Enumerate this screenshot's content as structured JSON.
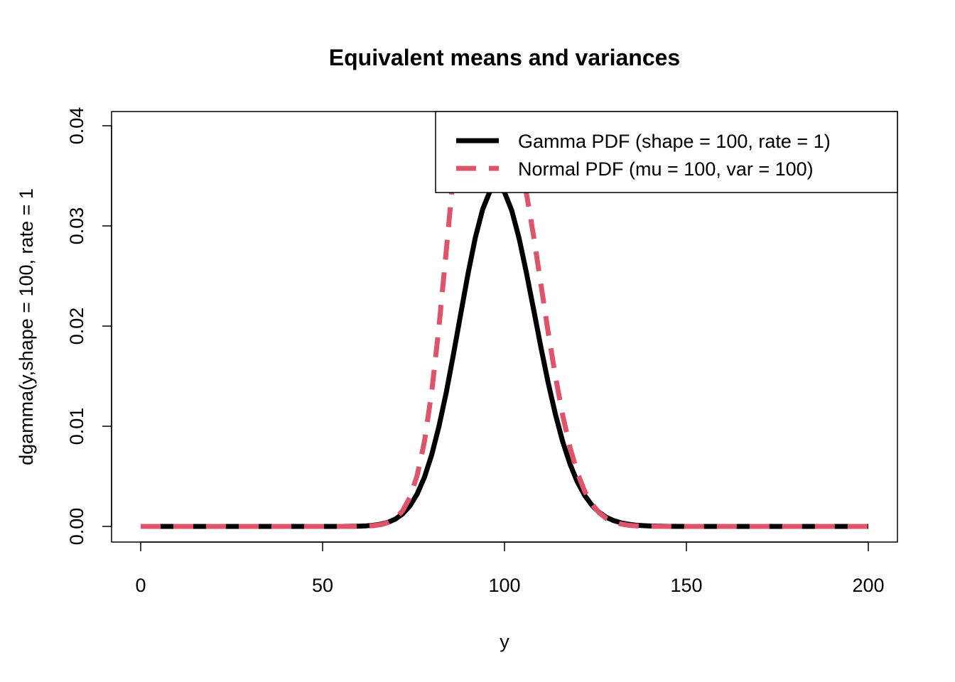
{
  "chart_data": {
    "type": "line",
    "title": "Equivalent means and variances",
    "xlabel": "y",
    "ylabel": "dgamma(y,shape = 100, rate = 1",
    "xlim": [
      0,
      200
    ],
    "ylim": [
      0,
      0.04
    ],
    "x_ticks": [
      0,
      50,
      100,
      150,
      200
    ],
    "x_tick_labels": [
      "0",
      "50",
      "100",
      "150",
      "200"
    ],
    "y_ticks": [
      0,
      0.01,
      0.02,
      0.03,
      0.04
    ],
    "y_tick_labels": [
      "0.00",
      "0.01",
      "0.02",
      "0.03",
      "0.04"
    ],
    "grid": false,
    "legend_position": "top-right",
    "x": [
      0,
      5,
      10,
      15,
      20,
      25,
      30,
      35,
      40,
      45,
      50,
      55,
      60,
      62,
      64,
      66,
      68,
      70,
      72,
      74,
      76,
      78,
      80,
      82,
      84,
      86,
      88,
      90,
      92,
      94,
      96,
      98,
      100,
      102,
      104,
      106,
      108,
      110,
      112,
      114,
      116,
      118,
      120,
      122,
      124,
      126,
      128,
      130,
      132,
      134,
      136,
      138,
      140,
      145,
      150,
      155,
      160,
      165,
      170,
      175,
      180,
      185,
      190,
      195,
      200
    ],
    "series": [
      {
        "name": "Gamma PDF (shape = 100, rate = 1)",
        "color": "#000000",
        "style": "solid",
        "values": [
          0,
          0,
          0,
          0,
          0,
          0,
          0,
          0,
          0,
          0,
          0,
          0,
          3e-05,
          6e-05,
          0.00012,
          0.00023,
          0.00041,
          0.00073,
          0.00125,
          0.00205,
          0.00324,
          0.00492,
          0.00716,
          0.01,
          0.0134,
          0.01724,
          0.0213,
          0.02528,
          0.02885,
          0.03167,
          0.03345,
          0.03403,
          0.03336,
          0.03153,
          0.02877,
          0.02537,
          0.02165,
          0.0179,
          0.01436,
          0.01118,
          0.00846,
          0.00623,
          0.00446,
          0.00312,
          0.00212,
          0.00141,
          0.00091,
          0.00058,
          0.00036,
          0.00022,
          0.00013,
          8e-05,
          4e-05,
          1e-05,
          0,
          0,
          0,
          0,
          0,
          0,
          0,
          0,
          0,
          0,
          0
        ]
      },
      {
        "name": "Normal PDF (mu = 100, var = 100)",
        "color": "#DF536B",
        "style": "dashed",
        "values": [
          0,
          0,
          0,
          0,
          0,
          0,
          0,
          0,
          0,
          0,
          0,
          0,
          1e-05,
          3e-05,
          8e-05,
          0.00018,
          0.00039,
          0.00079,
          0.00156,
          0.0029,
          0.00509,
          0.00849,
          0.01345,
          0.01993,
          0.02756,
          0.03532,
          0.04185,
          0.04579,
          0.04612,
          0.04309,
          0.03697,
          0.0391,
          0.03989,
          0.0391,
          0.03683,
          0.03332,
          0.02897,
          0.0242,
          0.01942,
          0.01497,
          0.01109,
          0.00789,
          0.0054,
          0.00355,
          0.00224,
          0.00136,
          0.00079,
          0.00044,
          0.00024,
          0.00012,
          6e-05,
          3e-05,
          1e-05,
          0,
          0,
          0,
          0,
          0,
          0,
          0,
          0,
          0,
          0,
          0,
          0
        ]
      }
    ]
  }
}
